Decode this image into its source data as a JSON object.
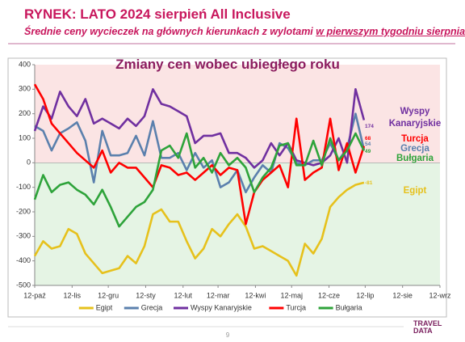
{
  "slide": {
    "title": "RYNEK: LATO 2024 sierpień All Inclusive",
    "subtitle": "Średnie ceny wycieczek na głównych kierunkach z wylotami",
    "subtitle_underlined": "w pierwszym tygodniu sierpnia",
    "page": "9",
    "logo_top": "TRAVEL",
    "logo_bottom": "DATA"
  },
  "chart_data": {
    "type": "line",
    "title": "Zmiany cen wobec ubiegłego roku",
    "x": [
      0,
      7,
      14,
      21,
      28,
      35,
      42,
      49,
      56,
      63,
      70,
      77,
      84,
      91,
      98,
      105,
      112,
      119,
      126,
      133,
      140,
      147,
      154,
      161,
      168,
      175,
      182,
      189,
      196,
      203,
      210,
      217,
      224,
      231,
      238,
      245,
      252,
      259,
      266,
      273
    ],
    "xlim": [
      0,
      336
    ],
    "xticks": [
      {
        "value": 0,
        "label": "12-paź"
      },
      {
        "value": 31,
        "label": "12-lis"
      },
      {
        "value": 61,
        "label": "12-gru"
      },
      {
        "value": 92,
        "label": "12-sty"
      },
      {
        "value": 123,
        "label": "12-lut"
      },
      {
        "value": 152,
        "label": "12-mar"
      },
      {
        "value": 183,
        "label": "12-kwi"
      },
      {
        "value": 213,
        "label": "12-maj"
      },
      {
        "value": 244,
        "label": "12-cze"
      },
      {
        "value": 274,
        "label": "12-lip"
      },
      {
        "value": 305,
        "label": "12-sie"
      },
      {
        "value": 336,
        "label": "12-wrz"
      }
    ],
    "ylim": [
      -500,
      400
    ],
    "yticks": [
      400,
      300,
      200,
      100,
      0,
      -100,
      -200,
      -300,
      -400,
      -500
    ],
    "background": {
      "above_zero": "#fbe4e4",
      "below_zero": "#e5f4e4"
    },
    "series": [
      {
        "name": "Egipt",
        "color": "#e6c11c",
        "values": [
          -380,
          -320,
          -350,
          -340,
          -270,
          -290,
          -370,
          -410,
          -450,
          -440,
          -430,
          -380,
          -410,
          -340,
          -210,
          -190,
          -240,
          -240,
          -320,
          -390,
          -350,
          -270,
          -300,
          -250,
          -210,
          -260,
          -350,
          -340,
          -360,
          -380,
          -400,
          -460,
          -330,
          -370,
          -310,
          -180,
          -140,
          -110,
          -90,
          -81
        ]
      },
      {
        "name": "Grecja",
        "color": "#5b80ad",
        "values": [
          150,
          130,
          50,
          120,
          140,
          165,
          90,
          -80,
          130,
          30,
          30,
          40,
          110,
          30,
          170,
          20,
          20,
          40,
          -30,
          40,
          -20,
          10,
          -100,
          -80,
          -30,
          -120,
          -60,
          -10,
          -40,
          80,
          60,
          0,
          -10,
          10,
          10,
          80,
          10,
          60,
          200,
          54
        ]
      },
      {
        "name": "Wyspy Kanaryjskie",
        "color": "#7030a0",
        "values": [
          130,
          230,
          180,
          290,
          230,
          190,
          260,
          160,
          180,
          160,
          140,
          180,
          150,
          190,
          300,
          240,
          230,
          210,
          190,
          80,
          110,
          110,
          120,
          40,
          40,
          20,
          -20,
          10,
          80,
          30,
          80,
          10,
          0,
          -10,
          0,
          30,
          100,
          0,
          300,
          174
        ]
      },
      {
        "name": "Turcja",
        "color": "#ff0000",
        "values": [
          320,
          260,
          160,
          120,
          80,
          40,
          10,
          -20,
          50,
          -40,
          0,
          -20,
          -20,
          -60,
          -100,
          -10,
          -20,
          -50,
          -40,
          -70,
          -40,
          -10,
          -50,
          -20,
          -30,
          -250,
          -120,
          -70,
          -40,
          -10,
          -100,
          180,
          -70,
          -40,
          -20,
          180,
          -30,
          80,
          -40,
          68
        ]
      },
      {
        "name": "Bułgaria",
        "color": "#2ea33a",
        "values": [
          -150,
          -50,
          -120,
          -90,
          -80,
          -110,
          -130,
          -170,
          -110,
          -180,
          -260,
          -220,
          -180,
          -160,
          -110,
          50,
          70,
          20,
          120,
          -20,
          20,
          -40,
          40,
          -10,
          20,
          -20,
          -120,
          -60,
          -20,
          70,
          80,
          -10,
          -10,
          90,
          -10,
          100,
          10,
          50,
          120,
          49
        ]
      }
    ]
  }
}
